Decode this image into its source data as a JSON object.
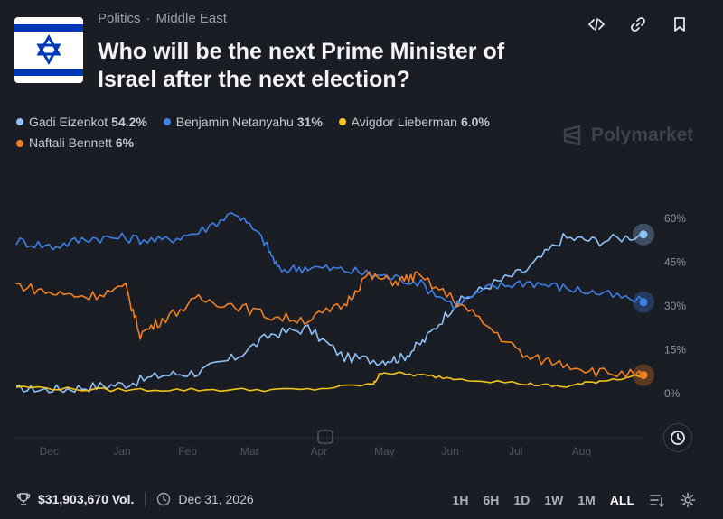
{
  "breadcrumb": {
    "category": "Politics",
    "separator": "·",
    "subcategory": "Middle East"
  },
  "title": "Who will be the next Prime Minister of Israel after the next election?",
  "watermark": "Polymarket",
  "legend": [
    {
      "name": "Gadi Eizenkot",
      "value": "54.2%",
      "color": "#8ec1f5"
    },
    {
      "name": "Benjamin Netanyahu",
      "value": "31%",
      "color": "#3d7fe6"
    },
    {
      "name": "Avigdor Lieberman",
      "value": "6.0%",
      "color": "#f2c418"
    },
    {
      "name": "Naftali Bennett",
      "value": "6%",
      "color": "#f07f22"
    }
  ],
  "footer": {
    "volume": "$31,903,670 Vol.",
    "end_date": "Dec 31, 2026"
  },
  "ranges": [
    "1H",
    "6H",
    "1D",
    "1W",
    "1M",
    "ALL"
  ],
  "active_range": "ALL",
  "icons": {
    "embed": "code-icon",
    "link": "link-icon",
    "bookmark": "bookmark-icon",
    "trophy": "trophy-icon",
    "clock": "clock-icon",
    "filter": "filter-icon",
    "settings": "gear-icon"
  },
  "chart_data": {
    "type": "line",
    "x_ticks": [
      "Dec",
      "Jan",
      "Feb",
      "Mar",
      "Apr",
      "May",
      "Jun",
      "Jul",
      "Aug"
    ],
    "y_ticks": [
      "60%",
      "45%",
      "30%",
      "15%",
      "0%"
    ],
    "y_tick_values": [
      60,
      45,
      30,
      15,
      0
    ],
    "ylim": [
      0,
      60
    ],
    "grid": false,
    "series": [
      {
        "name": "Gadi Eizenkot",
        "color": "#8ec1f5",
        "points": [
          [
            0,
            1
          ],
          [
            0.5,
            1
          ],
          [
            1,
            2
          ],
          [
            1.5,
            3
          ],
          [
            2,
            6
          ],
          [
            2.5,
            7
          ],
          [
            3,
            12
          ],
          [
            3.5,
            20
          ],
          [
            4,
            22
          ],
          [
            4.5,
            12
          ],
          [
            5,
            11
          ],
          [
            5.3,
            12
          ],
          [
            5.6,
            18
          ],
          [
            6,
            30
          ],
          [
            6.5,
            37
          ],
          [
            7,
            42
          ],
          [
            7.5,
            53
          ],
          [
            8,
            52
          ],
          [
            8.6,
            54.2
          ]
        ]
      },
      {
        "name": "Benjamin Netanyahu",
        "color": "#3d7fe6",
        "points": [
          [
            0,
            52
          ],
          [
            0.5,
            50
          ],
          [
            1,
            53
          ],
          [
            1.5,
            53
          ],
          [
            2,
            52
          ],
          [
            2.5,
            55
          ],
          [
            3,
            62
          ],
          [
            3.4,
            52
          ],
          [
            3.6,
            42
          ],
          [
            4,
            43
          ],
          [
            4.5,
            42
          ],
          [
            5,
            40
          ],
          [
            5.5,
            38
          ],
          [
            6,
            30
          ],
          [
            6.5,
            36
          ],
          [
            7,
            38
          ],
          [
            7.5,
            36
          ],
          [
            8,
            34
          ],
          [
            8.6,
            31
          ]
        ]
      },
      {
        "name": "Avigdor Lieberman",
        "color": "#f2c418",
        "points": [
          [
            0,
            2
          ],
          [
            1,
            1
          ],
          [
            2,
            1
          ],
          [
            3,
            1
          ],
          [
            4,
            1
          ],
          [
            4.9,
            3
          ],
          [
            5,
            7
          ],
          [
            5.5,
            6
          ],
          [
            6,
            5
          ],
          [
            7,
            3
          ],
          [
            7.5,
            2
          ],
          [
            8,
            4
          ],
          [
            8.6,
            6.0
          ]
        ]
      },
      {
        "name": "Naftali Bennett",
        "color": "#f07f22",
        "points": [
          [
            0,
            37
          ],
          [
            0.5,
            34
          ],
          [
            1,
            33
          ],
          [
            1.5,
            36
          ],
          [
            1.7,
            20
          ],
          [
            2,
            25
          ],
          [
            2.5,
            32
          ],
          [
            3,
            30
          ],
          [
            3.5,
            26
          ],
          [
            4,
            25
          ],
          [
            4.5,
            30
          ],
          [
            4.8,
            40
          ],
          [
            5.2,
            38
          ],
          [
            5.5,
            40
          ],
          [
            6,
            32
          ],
          [
            6.5,
            22
          ],
          [
            7,
            12
          ],
          [
            7.5,
            10
          ],
          [
            8,
            7
          ],
          [
            8.6,
            6
          ]
        ]
      }
    ]
  }
}
